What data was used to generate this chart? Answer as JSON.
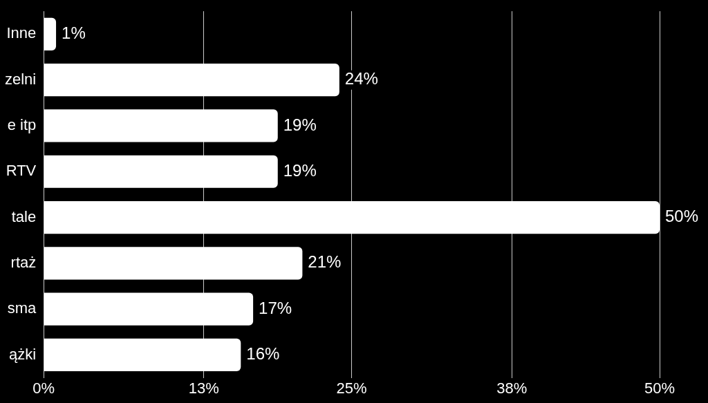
{
  "chart_data": {
    "type": "bar",
    "orientation": "horizontal",
    "categories": [
      "Inne",
      "zelni",
      "e itp",
      "RTV",
      "tale",
      "rtaż",
      "sma",
      "ążki"
    ],
    "values": [
      1,
      24,
      19,
      19,
      50,
      21,
      17,
      16
    ],
    "color": "#ffffff",
    "data_labels": true,
    "value_labels": [
      "1%",
      "24%",
      "19%",
      "19%",
      "50%",
      "21%",
      "17%",
      "16%"
    ],
    "xlim": [
      0,
      50
    ],
    "xticks": [
      {
        "value": 0,
        "label": "0%"
      },
      {
        "value": 13,
        "label": "13%"
      },
      {
        "value": 25,
        "label": "25%"
      },
      {
        "value": 38,
        "label": "38%"
      },
      {
        "value": 50,
        "label": "50%"
      }
    ],
    "grid": "x",
    "legend": false
  }
}
